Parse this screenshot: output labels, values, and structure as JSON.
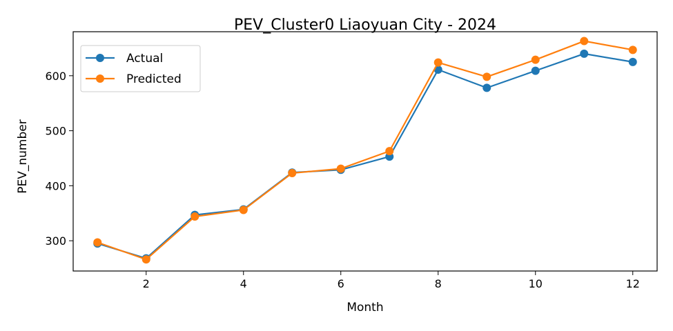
{
  "chart_data": {
    "type": "line",
    "title": "PEV_Cluster0 Liaoyuan City - 2024",
    "xlabel": "Month",
    "ylabel": "PEV_number",
    "x": [
      1,
      2,
      3,
      4,
      5,
      6,
      7,
      8,
      9,
      10,
      11,
      12
    ],
    "xticks": [
      2,
      4,
      6,
      8,
      10,
      12
    ],
    "yticks": [
      300,
      400,
      500,
      600
    ],
    "xlim": [
      0.5,
      12.5
    ],
    "ylim": [
      245,
      680
    ],
    "grid": false,
    "legend_position": "upper-left",
    "series": [
      {
        "name": "Actual",
        "color": "#1f77b4",
        "marker": "circle",
        "values": [
          295,
          268,
          347,
          357,
          424,
          429,
          453,
          611,
          578,
          609,
          640,
          625
        ]
      },
      {
        "name": "Predicted",
        "color": "#ff7f0e",
        "marker": "circle",
        "values": [
          297,
          266,
          344,
          356,
          423,
          431,
          463,
          624,
          598,
          629,
          663,
          647
        ]
      }
    ]
  }
}
